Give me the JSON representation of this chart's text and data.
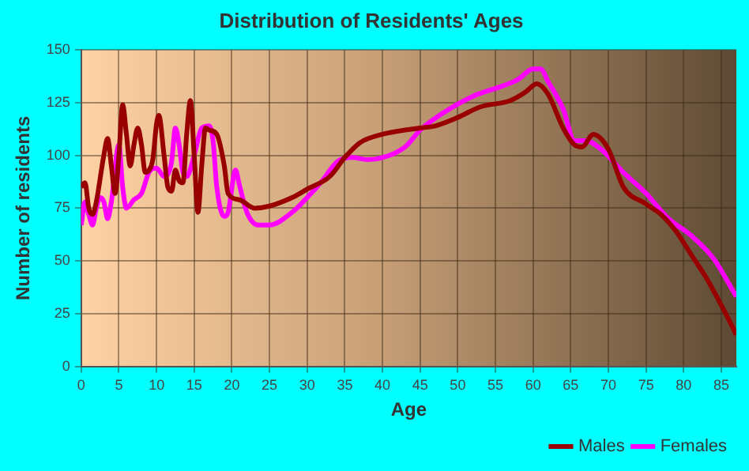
{
  "chart_data": {
    "type": "line",
    "title": "Distribution of Residents' Ages",
    "xlabel": "Age",
    "ylabel": "Number of residents",
    "xlim": [
      0,
      87
    ],
    "xticks": [
      0,
      5,
      10,
      15,
      20,
      25,
      30,
      35,
      40,
      45,
      50,
      55,
      60,
      65,
      70,
      75,
      80,
      85
    ],
    "ylim": [
      0,
      150
    ],
    "yticks": [
      0,
      25,
      50,
      75,
      100,
      125,
      150
    ],
    "grid": true,
    "legend": "bottom right",
    "marker": "none",
    "line_style": "solid",
    "series": [
      {
        "name": "Males",
        "color": "#990000",
        "x": [
          0,
          0.5,
          1,
          1.5,
          2,
          3,
          3.5,
          4,
          4.5,
          5,
          5.5,
          6,
          6.5,
          7,
          7.5,
          8,
          8.5,
          9,
          9.5,
          10,
          10.3,
          11,
          11.5,
          12,
          12.5,
          13,
          13.5,
          14,
          14.5,
          15,
          15.5,
          16,
          16.5,
          17,
          18,
          19,
          19.5,
          21,
          23,
          25,
          28,
          30,
          33,
          35,
          37,
          40,
          45,
          47,
          50,
          53,
          57,
          59,
          60.5,
          62,
          64,
          65.5,
          66.5,
          68,
          70,
          72,
          75,
          77,
          79,
          81,
          83,
          85,
          87
        ],
        "values": [
          85,
          87,
          75,
          72,
          78,
          100,
          108,
          95,
          82,
          100,
          124,
          110,
          95,
          105,
          113,
          105,
          92,
          93,
          98,
          115,
          119,
          100,
          85,
          83,
          93,
          88,
          87,
          110,
          126,
          100,
          73,
          95,
          113,
          112,
          110,
          95,
          82,
          79,
          75,
          76,
          80,
          84,
          90,
          99,
          106,
          110,
          113,
          114,
          118,
          123,
          126,
          130,
          134,
          129,
          113,
          105,
          104,
          110,
          103,
          85,
          77,
          72,
          64,
          53,
          42,
          29,
          15
        ]
      },
      {
        "name": "Females",
        "color": "#ff00ff",
        "x": [
          0,
          0.5,
          1,
          1.5,
          2,
          2.5,
          3,
          3.5,
          4,
          5,
          5.5,
          6,
          7,
          8,
          9,
          10,
          11,
          12,
          12.5,
          13,
          13.5,
          14,
          15,
          16,
          17,
          17.5,
          18,
          19,
          19.5,
          20.5,
          21,
          22,
          23.5,
          25,
          28,
          30,
          32,
          34,
          36,
          38,
          40,
          43,
          45,
          48,
          52,
          56,
          58,
          60,
          61,
          62,
          64,
          65.5,
          67,
          69,
          72,
          75,
          78,
          81,
          84,
          87
        ],
        "values": [
          67,
          78,
          72,
          67,
          75,
          80,
          78,
          70,
          78,
          105,
          85,
          75,
          79,
          82,
          92,
          94,
          90,
          97,
          113,
          105,
          92,
          90,
          100,
          113,
          114,
          107,
          85,
          71,
          73,
          93,
          86,
          73,
          67,
          67,
          73,
          80,
          88,
          97,
          99,
          98,
          99,
          104,
          112,
          120,
          128,
          133,
          136,
          141,
          141,
          135,
          122,
          107,
          107,
          103,
          92,
          82,
          70,
          62,
          51,
          33
        ]
      }
    ]
  }
}
